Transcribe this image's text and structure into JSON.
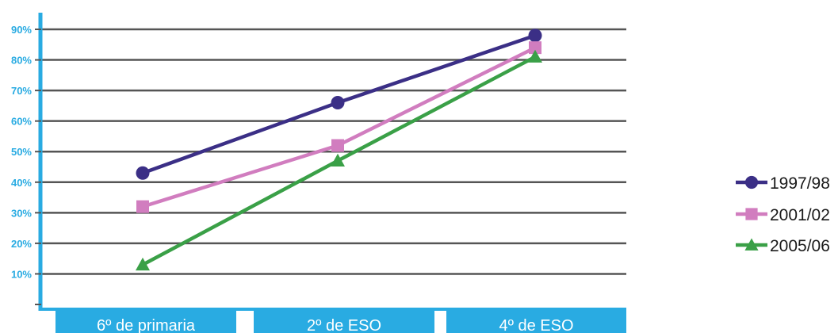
{
  "chart_data": {
    "type": "line",
    "categories": [
      "6º de primaria",
      "2º de ESO",
      "4º de ESO"
    ],
    "series": [
      {
        "name": "1997/98",
        "values": [
          43,
          66,
          88
        ],
        "color": "#3B2F86",
        "marker": "circle"
      },
      {
        "name": "2001/02",
        "values": [
          32,
          52,
          84
        ],
        "color": "#D17DBF",
        "marker": "square"
      },
      {
        "name": "2005/06",
        "values": [
          13,
          47,
          81
        ],
        "color": "#3AA047",
        "marker": "triangle"
      }
    ],
    "yticks": [
      0,
      10,
      20,
      30,
      40,
      50,
      60,
      70,
      80,
      90
    ],
    "ytick_labels": [
      "",
      "10%",
      "20%",
      "30%",
      "40%",
      "50%",
      "60%",
      "70%",
      "80%",
      "90%"
    ],
    "ylim": [
      0,
      95
    ],
    "grid": true,
    "legend_position": "right",
    "axis_color": "#29ABE2",
    "grid_color": "#555555"
  }
}
